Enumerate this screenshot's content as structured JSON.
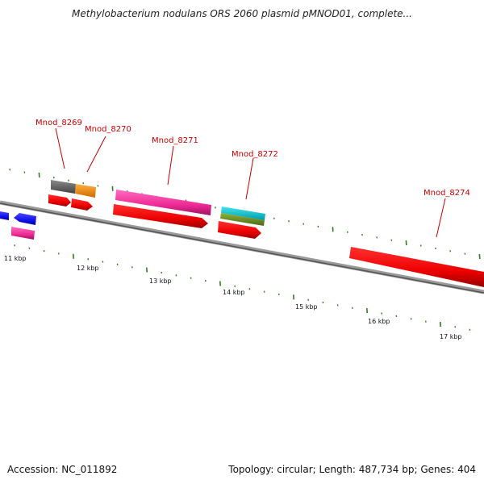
{
  "title": "Methylobacterium nodulans ORS 2060 plasmid pMNOD01, complete...",
  "footer": {
    "accession": "Accession: NC_011892",
    "summary": "Topology: circular; Length: 487,734 bp; Genes: 404"
  },
  "scale": {
    "kbp_labels": [
      "11 kbp",
      "12 kbp",
      "13 kbp",
      "14 kbp",
      "15 kbp",
      "16 kbp",
      "17 kbp"
    ]
  },
  "genes": [
    {
      "name": "Mnod_8269"
    },
    {
      "name": "Mnod_8270"
    },
    {
      "name": "Mnod_8271"
    },
    {
      "name": "Mnod_8272"
    },
    {
      "name": "Mnod_8274"
    }
  ],
  "colors": {
    "backbone": "#808080",
    "tick": "#2e7d1e",
    "red": "#ee0000",
    "pink": "#ee2a96",
    "blue": "#1010ee",
    "orange": "#ff8c00",
    "gray": "#666666",
    "cyan": "#00c8d8",
    "olive": "#6b8e23",
    "label": "#cc0000"
  }
}
